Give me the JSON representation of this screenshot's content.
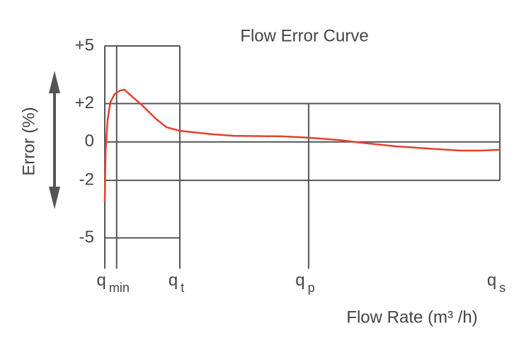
{
  "chart_data": {
    "type": "line",
    "title": "Flow Error Curve",
    "ylabel": "Error (%)",
    "xlabel": "Flow Rate (m³ /h)",
    "xlim": [
      0,
      100
    ],
    "ylim": [
      -6.6,
      5
    ],
    "yticks": [
      {
        "value": 5,
        "label": "+5"
      },
      {
        "value": 2,
        "label": "+2"
      },
      0,
      -2,
      -5
    ],
    "xticks": [
      {
        "value": 3,
        "label": "q",
        "sub": "min"
      },
      {
        "value": 19,
        "label": "q",
        "sub": "t"
      },
      {
        "value": 51.6,
        "label": "q",
        "sub": "p"
      },
      {
        "value": 100,
        "label": "q",
        "sub": "s"
      }
    ],
    "x": [
      0,
      0.2,
      0.7,
      1.4,
      2.5,
      3.9,
      5,
      6.6,
      9.3,
      12.9,
      15.6,
      19,
      27.2,
      32.6,
      45.2,
      51.6,
      59.5,
      64.9,
      73.8,
      81,
      90,
      95.3,
      100
    ],
    "series": [
      {
        "color": "#e2412f",
        "values": [
          -3.12,
          -0.52,
          1.13,
          2.05,
          2.5,
          2.68,
          2.72,
          2.42,
          1.94,
          1.21,
          0.77,
          0.58,
          0.4,
          0.32,
          0.29,
          0.22,
          0.1,
          -0.04,
          -0.23,
          -0.33,
          -0.45,
          -0.45,
          -0.41
        ]
      }
    ]
  }
}
